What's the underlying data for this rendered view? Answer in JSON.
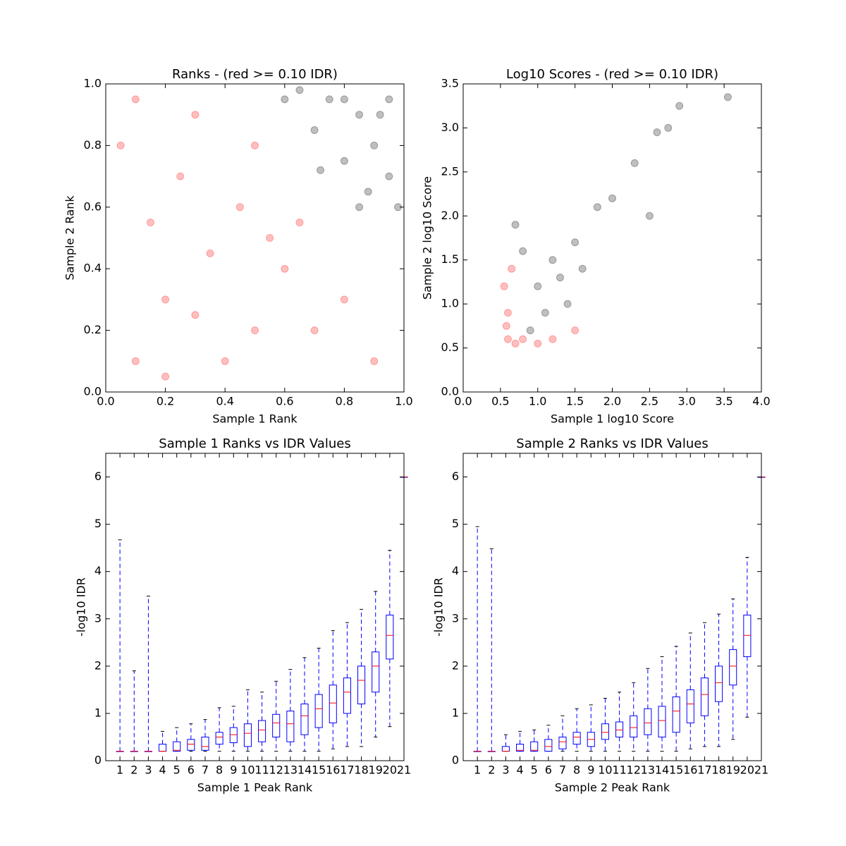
{
  "chart_data": [
    {
      "type": "scatter",
      "title": "Ranks - (red >= 0.10 IDR)",
      "xlabel": "Sample 1 Rank",
      "ylabel": "Sample 2 Rank",
      "xlim": [
        0,
        1
      ],
      "ylim": [
        0,
        1
      ],
      "xticks": [
        {
          "value": 0,
          "label": "0.0"
        },
        0.2,
        0.4,
        0.6,
        0.8,
        {
          "value": 1,
          "label": "1.0"
        }
      ],
      "yticks": [
        {
          "value": 0,
          "label": "0.0"
        },
        0.2,
        0.4,
        0.6,
        0.8,
        {
          "value": 1,
          "label": "1.0"
        }
      ],
      "series": [
        {
          "color": "#ff0000",
          "x": [
            0.1,
            0.2,
            0.35,
            0.05,
            0.3,
            0.5,
            0.45,
            0.6,
            0.7,
            0.15,
            0.25,
            0.4,
            0.55,
            0.8,
            0.9,
            0.1,
            0.3,
            0.65,
            0.2,
            0.5
          ],
          "y": [
            0.1,
            0.3,
            0.45,
            0.8,
            0.9,
            0.2,
            0.6,
            0.4,
            0.2,
            0.55,
            0.7,
            0.1,
            0.5,
            0.3,
            0.1,
            0.95,
            0.25,
            0.55,
            0.05,
            0.8
          ]
        },
        {
          "color": "#000000",
          "x": [
            0.95,
            0.85,
            0.75,
            0.9,
            0.7,
            0.8,
            0.95,
            0.65,
            0.88,
            0.98,
            0.72,
            0.6,
            0.85,
            0.92,
            0.8
          ],
          "y": [
            0.95,
            0.9,
            0.95,
            0.8,
            0.85,
            0.75,
            0.7,
            0.98,
            0.65,
            0.6,
            0.72,
            0.95,
            0.6,
            0.9,
            0.95
          ]
        }
      ]
    },
    {
      "type": "scatter",
      "title": "Log10 Scores - (red >= 0.10 IDR)",
      "xlabel": "Sample 1 log10 Score",
      "ylabel": "Sample 2 log10 Score",
      "xlim": [
        0,
        4
      ],
      "ylim": [
        0,
        3.5
      ],
      "xticks": [
        {
          "value": 0,
          "label": "0.0"
        },
        0.5,
        {
          "value": 1,
          "label": "1.0"
        },
        1.5,
        {
          "value": 2,
          "label": "2.0"
        },
        2.5,
        {
          "value": 3,
          "label": "3.0"
        },
        3.5,
        {
          "value": 4,
          "label": "4.0"
        }
      ],
      "yticks": [
        {
          "value": 0,
          "label": "0.0"
        },
        0.5,
        {
          "value": 1,
          "label": "1.0"
        },
        1.5,
        {
          "value": 2,
          "label": "2.0"
        },
        2.5,
        {
          "value": 3,
          "label": "3.0"
        },
        3.5
      ],
      "series": [
        {
          "color": "#000000",
          "x": [
            3.55,
            2.9,
            2.75,
            2.6,
            2.3,
            2.0,
            1.8,
            1.5,
            1.2,
            1.0,
            1.4,
            0.8,
            1.6,
            1.1,
            0.9,
            1.3,
            2.5,
            0.7
          ],
          "y": [
            3.35,
            3.25,
            3.0,
            2.95,
            2.6,
            2.2,
            2.1,
            1.7,
            1.5,
            1.2,
            1.0,
            1.6,
            1.4,
            0.9,
            0.7,
            1.3,
            2.0,
            1.9
          ]
        },
        {
          "color": "#ff0000",
          "x": [
            0.6,
            0.7,
            0.55,
            0.6,
            0.8,
            1.2,
            1.5,
            0.65,
            1.0,
            0.58
          ],
          "y": [
            0.6,
            0.55,
            1.2,
            0.9,
            0.6,
            0.6,
            0.7,
            1.4,
            0.55,
            0.75
          ]
        }
      ]
    },
    {
      "type": "box",
      "title": "Sample 1 Ranks vs IDR Values",
      "xlabel": "Sample 1 Peak Rank",
      "ylabel": "-log10 IDR",
      "xlim": [
        0,
        21
      ],
      "ylim": [
        0,
        6.5
      ],
      "xticks": [
        1,
        2,
        3,
        4,
        5,
        6,
        7,
        8,
        9,
        10,
        11,
        12,
        13,
        14,
        15,
        16,
        17,
        18,
        19,
        20,
        21
      ],
      "yticks": [
        0,
        1,
        2,
        3,
        4,
        5,
        6
      ],
      "boxes": [
        [
          0.2,
          0.2,
          0.2,
          0.2,
          4.67
        ],
        [
          0.2,
          0.2,
          0.2,
          0.2,
          1.9
        ],
        [
          0.2,
          0.2,
          0.2,
          0.2,
          3.48
        ],
        [
          0.2,
          0.2,
          0.2,
          0.35,
          0.62
        ],
        [
          0.2,
          0.2,
          0.22,
          0.4,
          0.7
        ],
        [
          0.2,
          0.22,
          0.35,
          0.45,
          0.78
        ],
        [
          0.2,
          0.22,
          0.3,
          0.5,
          0.87
        ],
        [
          0.2,
          0.35,
          0.5,
          0.6,
          1.12
        ],
        [
          0.2,
          0.38,
          0.55,
          0.7,
          1.15
        ],
        [
          0.2,
          0.3,
          0.58,
          0.78,
          1.5
        ],
        [
          0.2,
          0.4,
          0.65,
          0.85,
          1.45
        ],
        [
          0.2,
          0.5,
          0.8,
          0.98,
          1.68
        ],
        [
          0.2,
          0.4,
          0.78,
          1.05,
          1.93
        ],
        [
          0.2,
          0.55,
          0.95,
          1.2,
          2.18
        ],
        [
          0.2,
          0.7,
          1.1,
          1.4,
          2.38
        ],
        [
          0.25,
          0.8,
          1.22,
          1.6,
          2.75
        ],
        [
          0.3,
          1.0,
          1.45,
          1.75,
          2.92
        ],
        [
          0.3,
          1.2,
          1.7,
          2.0,
          3.2
        ],
        [
          0.5,
          1.45,
          2.0,
          2.3,
          3.58
        ],
        [
          0.72,
          2.15,
          2.65,
          3.08,
          4.45
        ],
        [
          6,
          6,
          6,
          6,
          6
        ]
      ]
    },
    {
      "type": "box",
      "title": "Sample 2 Ranks vs IDR Values",
      "xlabel": "Sample 2 Peak Rank",
      "ylabel": "-log10 IDR",
      "xlim": [
        0,
        21
      ],
      "ylim": [
        0,
        6.5
      ],
      "xticks": [
        1,
        2,
        3,
        4,
        5,
        6,
        7,
        8,
        9,
        10,
        11,
        12,
        13,
        14,
        15,
        16,
        17,
        18,
        19,
        20,
        21
      ],
      "yticks": [
        0,
        1,
        2,
        3,
        4,
        5,
        6
      ],
      "boxes": [
        [
          0.2,
          0.2,
          0.2,
          0.2,
          4.95
        ],
        [
          0.2,
          0.2,
          0.2,
          0.2,
          4.48
        ],
        [
          0.2,
          0.2,
          0.2,
          0.3,
          0.55
        ],
        [
          0.2,
          0.2,
          0.22,
          0.35,
          0.62
        ],
        [
          0.2,
          0.2,
          0.22,
          0.4,
          0.65
        ],
        [
          0.2,
          0.2,
          0.3,
          0.45,
          0.75
        ],
        [
          0.2,
          0.25,
          0.4,
          0.5,
          0.95
        ],
        [
          0.2,
          0.35,
          0.5,
          0.6,
          1.1
        ],
        [
          0.2,
          0.3,
          0.45,
          0.6,
          1.18
        ],
        [
          0.2,
          0.45,
          0.6,
          0.78,
          1.32
        ],
        [
          0.2,
          0.5,
          0.65,
          0.82,
          1.45
        ],
        [
          0.2,
          0.5,
          0.7,
          0.95,
          1.65
        ],
        [
          0.2,
          0.55,
          0.8,
          1.1,
          1.95
        ],
        [
          0.2,
          0.5,
          0.85,
          1.15,
          2.2
        ],
        [
          0.2,
          0.6,
          1.05,
          1.35,
          2.42
        ],
        [
          0.25,
          0.8,
          1.2,
          1.5,
          2.7
        ],
        [
          0.3,
          0.95,
          1.4,
          1.75,
          2.92
        ],
        [
          0.3,
          1.25,
          1.65,
          2.0,
          3.1
        ],
        [
          0.45,
          1.6,
          2.0,
          2.35,
          3.42
        ],
        [
          0.92,
          2.2,
          2.65,
          3.08,
          4.3
        ],
        [
          6,
          6,
          6,
          6,
          6
        ]
      ]
    }
  ]
}
